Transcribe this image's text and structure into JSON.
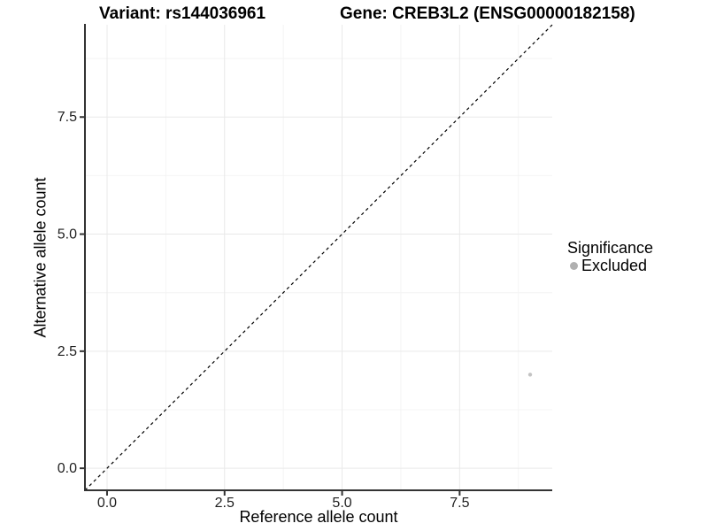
{
  "figure": {
    "title_left": "Variant: rs144036961",
    "title_right": "Gene: CREB3L2 (ENSG00000182158)"
  },
  "chart_data": {
    "type": "scatter",
    "title": "Variant: rs144036961   Gene: CREB3L2 (ENSG00000182158)",
    "xlabel": "Reference allele count",
    "ylabel": "Alternative allele count",
    "xlim": [
      -0.47,
      9.47
    ],
    "ylim": [
      -0.47,
      9.47
    ],
    "x_ticks": [
      0.0,
      2.5,
      5.0,
      7.5
    ],
    "y_ticks": [
      0.0,
      2.5,
      5.0,
      7.5
    ],
    "x_minor_ticks": [
      1.25,
      3.75,
      6.25,
      8.75
    ],
    "y_minor_ticks": [
      1.25,
      3.75,
      6.25,
      8.75
    ],
    "tick_label_format": "0.0",
    "grid": true,
    "reference_line": {
      "kind": "identity-diagonal",
      "style": "dashed",
      "color": "#000000"
    },
    "series": [
      {
        "name": "Excluded",
        "color": "#c3c3c3",
        "points": [
          {
            "x": 9,
            "y": 2
          }
        ]
      }
    ],
    "legend": {
      "title": "Significance",
      "position": "right",
      "entries": [
        {
          "label": "Excluded",
          "color": "#b0b0b0"
        }
      ]
    },
    "colors": {
      "background": "#ffffff",
      "grid_major": "#e9e9e9",
      "grid_minor": "#f4f4f4",
      "axis_line": "#333333",
      "tick_mark": "#333333",
      "tick_label": "#1f1f1f",
      "diagonal": "#000000",
      "point": "#c3c3c3"
    }
  }
}
